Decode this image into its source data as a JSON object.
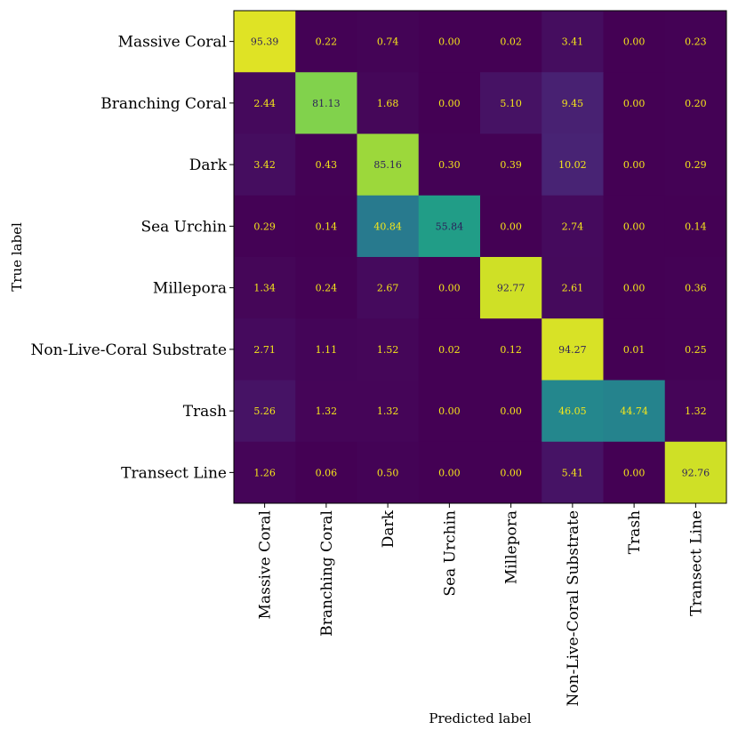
{
  "chart_data": {
    "type": "heatmap",
    "title": "",
    "xlabel": "Predicted label",
    "ylabel": "True label",
    "colormap": "viridis",
    "vmin": 0,
    "vmax": 100,
    "x_categories": [
      "Massive Coral",
      "Branching Coral",
      "Dark",
      "Sea Urchin",
      "Millepora",
      "Non-Live-Coral Substrate",
      "Trash",
      "Transect Line"
    ],
    "y_categories": [
      "Massive Coral",
      "Branching Coral",
      "Dark",
      "Sea Urchin",
      "Millepora",
      "Non-Live-Coral Substrate",
      "Trash",
      "Transect Line"
    ],
    "values": [
      [
        95.39,
        0.22,
        0.74,
        0.0,
        0.02,
        3.41,
        0.0,
        0.23
      ],
      [
        2.44,
        81.13,
        1.68,
        0.0,
        5.1,
        9.45,
        0.0,
        0.2
      ],
      [
        3.42,
        0.43,
        85.16,
        0.3,
        0.39,
        10.02,
        0.0,
        0.29
      ],
      [
        0.29,
        0.14,
        40.84,
        55.84,
        0.0,
        2.74,
        0.0,
        0.14
      ],
      [
        1.34,
        0.24,
        2.67,
        0.0,
        92.77,
        2.61,
        0.0,
        0.36
      ],
      [
        2.71,
        1.11,
        1.52,
        0.02,
        0.12,
        94.27,
        0.01,
        0.25
      ],
      [
        5.26,
        1.32,
        1.32,
        0.0,
        0.0,
        46.05,
        44.74,
        1.32
      ],
      [
        1.26,
        0.06,
        0.5,
        0.0,
        0.0,
        5.41,
        0.0,
        92.76
      ]
    ],
    "text_color_dark": "#2c1f5a",
    "text_color_light": "#f5e61a"
  }
}
